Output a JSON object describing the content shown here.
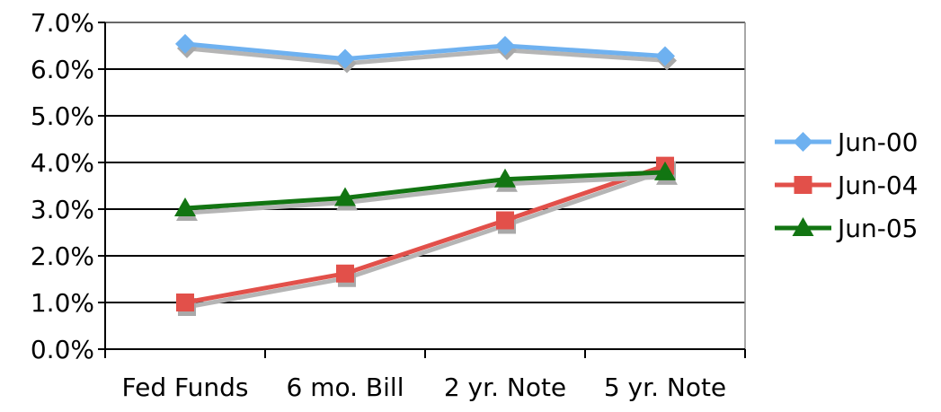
{
  "chart_data": {
    "type": "line",
    "categories": [
      "Fed Funds",
      "6 mo. Bill",
      "2 yr. Note",
      "5 yr. Note"
    ],
    "series": [
      {
        "name": "Jun-00",
        "values": [
          6.54,
          6.22,
          6.5,
          6.28
        ],
        "color": "#6eb1f0",
        "marker": "diamond"
      },
      {
        "name": "Jun-04",
        "values": [
          1.0,
          1.62,
          2.76,
          3.93
        ],
        "color": "#e2504a",
        "marker": "square"
      },
      {
        "name": "Jun-05",
        "values": [
          3.02,
          3.24,
          3.64,
          3.79
        ],
        "color": "#127512",
        "marker": "triangle"
      }
    ],
    "ylim": [
      0,
      7
    ],
    "y_ticks": [
      "0.0%",
      "1.0%",
      "2.0%",
      "3.0%",
      "4.0%",
      "5.0%",
      "6.0%",
      "7.0%"
    ],
    "grid": true,
    "legend_position": "right"
  }
}
